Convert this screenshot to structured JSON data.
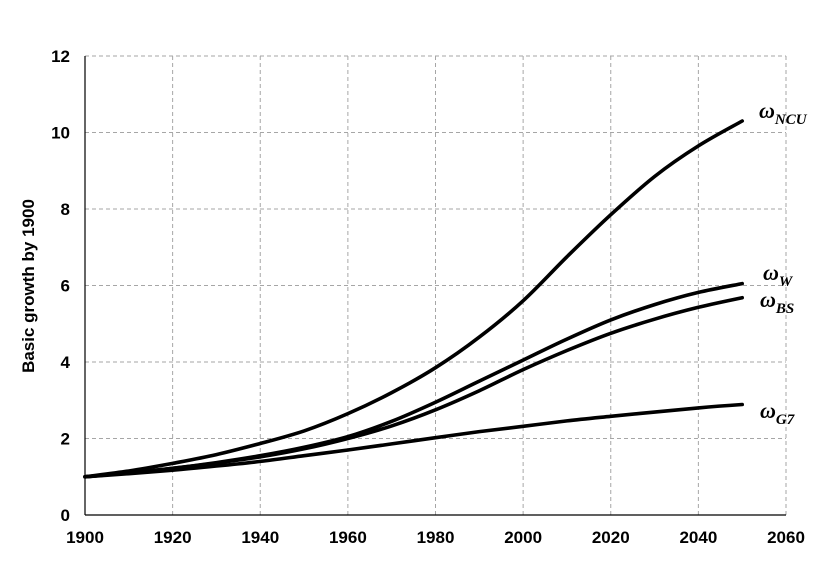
{
  "chart_data": {
    "type": "line",
    "title": "",
    "xlabel": "",
    "ylabel": "Basic growth by 1900",
    "xlim": [
      1900,
      2060
    ],
    "ylim": [
      0,
      12
    ],
    "xticks": [
      "1900",
      "1920",
      "1940",
      "1960",
      "1980",
      "2000",
      "2020",
      "2040",
      "2060"
    ],
    "yticks": [
      "0",
      "2",
      "4",
      "6",
      "8",
      "10",
      "12"
    ],
    "grid": true,
    "x": [
      1900,
      1910,
      1920,
      1930,
      1940,
      1950,
      1960,
      1970,
      1980,
      1990,
      2000,
      2010,
      2020,
      2030,
      2040,
      2050
    ],
    "series": [
      {
        "key": "ncu",
        "name": "NCU",
        "label_symbol": "ω",
        "values": [
          1.0,
          1.15,
          1.35,
          1.58,
          1.87,
          2.2,
          2.65,
          3.2,
          3.85,
          4.65,
          5.6,
          6.75,
          7.85,
          8.85,
          9.65,
          10.3
        ]
      },
      {
        "key": "w",
        "name": "W",
        "label_symbol": "ω",
        "values": [
          1.0,
          1.1,
          1.22,
          1.37,
          1.55,
          1.77,
          2.05,
          2.45,
          2.95,
          3.5,
          4.05,
          4.6,
          5.1,
          5.5,
          5.82,
          6.05
        ]
      },
      {
        "key": "bs",
        "name": "BS",
        "label_symbol": "ω",
        "values": [
          1.0,
          1.1,
          1.22,
          1.36,
          1.52,
          1.73,
          2.0,
          2.33,
          2.75,
          3.25,
          3.8,
          4.3,
          4.75,
          5.12,
          5.43,
          5.68
        ]
      },
      {
        "key": "g7",
        "name": "G7",
        "label_symbol": "ω",
        "values": [
          1.0,
          1.08,
          1.17,
          1.28,
          1.4,
          1.55,
          1.7,
          1.86,
          2.02,
          2.18,
          2.32,
          2.46,
          2.58,
          2.69,
          2.8,
          2.89
        ]
      }
    ]
  }
}
